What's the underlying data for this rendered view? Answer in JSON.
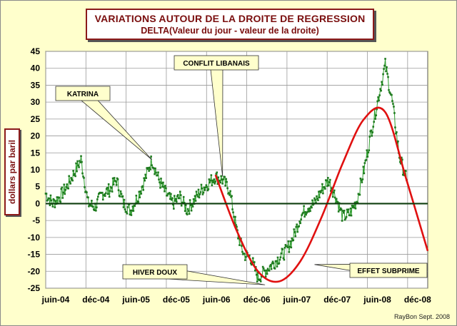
{
  "title": {
    "line1": "VARIATIONS AUTOUR DE LA DROITE DE REGRESSION",
    "line2": "DELTA(Valeur du jour - valeur de la droite)"
  },
  "credit": "RayBon Sept. 2008",
  "colors": {
    "background": "#ffffcc",
    "plot_background": "#ffffff",
    "grid": "#9a9a9a",
    "series_main": "#2e9e2e",
    "series_main_points": "#1f7a1f",
    "fit_curve": "#e01010",
    "zero_line": "#0f3f0f",
    "frame_text": "#7a0e0e"
  },
  "chart_data": {
    "type": "line",
    "title": "VARIATIONS AUTOUR DE LA DROITE DE REGRESSION",
    "subtitle": "DELTA(Valeur du jour - valeur de la droite)",
    "xlabel": "",
    "ylabel": "dollars par baril",
    "ylim": [
      -25,
      45
    ],
    "yticks": [
      45,
      40,
      35,
      30,
      25,
      20,
      15,
      10,
      5,
      0,
      -5,
      -10,
      -15,
      -20,
      -25
    ],
    "xticks": [
      "juin-04",
      "déc-04",
      "juin-05",
      "déc-05",
      "juin-06",
      "déc-06",
      "juin-07",
      "déc-07",
      "juin-08",
      "déc-08"
    ],
    "xlim": [
      "2004-06",
      "2008-12"
    ],
    "grid": true,
    "legend": "none",
    "series": [
      {
        "style": "daily-markers",
        "x": [
          "2004-06",
          "2004-07",
          "2004-08",
          "2004-09",
          "2004-10",
          "2004-11",
          "2004-12",
          "2005-01",
          "2005-02",
          "2005-03",
          "2005-04",
          "2005-05",
          "2005-06",
          "2005-07",
          "2005-08",
          "2005-09",
          "2005-10",
          "2005-11",
          "2005-12",
          "2006-01",
          "2006-02",
          "2006-03",
          "2006-04",
          "2006-05",
          "2006-06",
          "2006-07",
          "2006-08",
          "2006-09",
          "2006-10",
          "2006-11",
          "2006-12",
          "2007-01",
          "2007-02",
          "2007-03",
          "2007-04",
          "2007-05",
          "2007-06",
          "2007-07",
          "2007-08",
          "2007-09",
          "2007-10",
          "2007-11",
          "2007-12",
          "2008-01",
          "2008-02",
          "2008-03",
          "2008-04",
          "2008-05",
          "2008-06",
          "2008-07",
          "2008-08",
          "2008-09"
        ],
        "values": [
          3,
          0,
          2,
          5,
          9,
          13,
          0,
          -1,
          3,
          4,
          7,
          0,
          -2,
          2,
          7,
          13,
          7,
          3,
          0,
          2,
          -2,
          1,
          4,
          6,
          8,
          7,
          4,
          -8,
          -15,
          -16,
          -22,
          -20,
          -18,
          -16,
          -14,
          -10,
          -4,
          -1,
          0,
          4,
          7,
          2,
          -4,
          -3,
          1,
          10,
          21,
          31,
          41,
          30,
          14,
          7
        ]
      },
      {
        "style": "fit-curve",
        "x": [
          "2006-06",
          "2006-09",
          "2006-12",
          "2007-03",
          "2007-06",
          "2007-09",
          "2007-12",
          "2008-03",
          "2008-06",
          "2008-09",
          "2008-12"
        ],
        "values": [
          8.5,
          -8,
          -20,
          -23,
          -17,
          -4,
          12,
          25,
          27,
          7,
          -14
        ]
      }
    ],
    "zero_line": 0,
    "annotations": [
      {
        "text": "KATRINA",
        "x": "2005-09",
        "y": 13
      },
      {
        "text": "CONFLIT LIBANAIS",
        "x": "2006-07",
        "y": 8
      },
      {
        "text": "HIVER DOUX",
        "x": "2007-01",
        "y": -24
      },
      {
        "text": "EFFET SUBPRIME",
        "x": "2007-08",
        "y": -18
      }
    ]
  }
}
